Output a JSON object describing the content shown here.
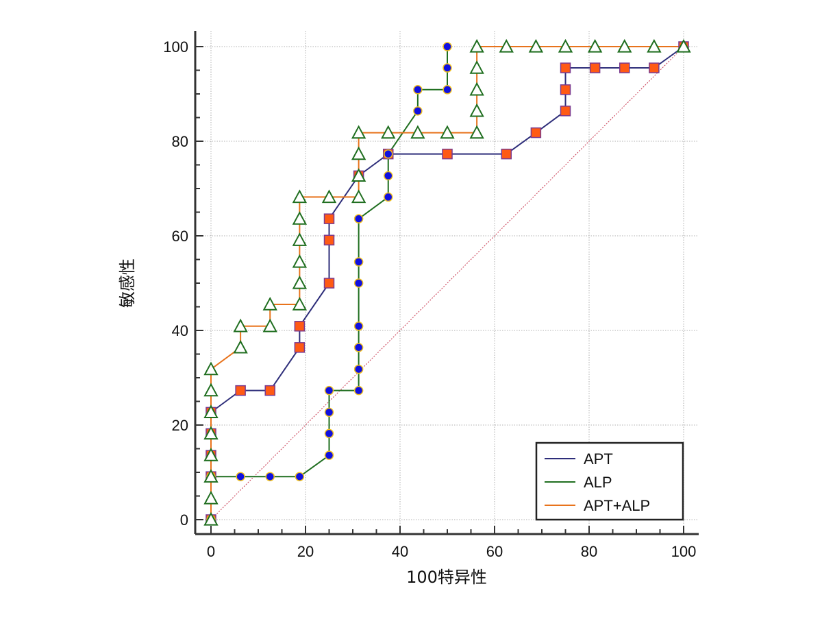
{
  "chart_data": {
    "type": "line",
    "title": "",
    "xlabel": "100特异性",
    "ylabel": "敏感性",
    "xlim": [
      0,
      100
    ],
    "ylim": [
      0,
      100
    ],
    "xticks": [
      0,
      20,
      40,
      60,
      80,
      100
    ],
    "yticks": [
      0,
      20,
      40,
      60,
      80,
      100
    ],
    "grid": true,
    "legend_position": "bottom-right",
    "reference_line": {
      "from": [
        0,
        0
      ],
      "to": [
        100,
        100
      ],
      "color": "#c8374f"
    },
    "series": [
      {
        "name": "APT",
        "color": "#2e2e7a",
        "marker": "square",
        "marker_fill": "#ff5a14",
        "marker_edge": "#7a3a8f",
        "x": [
          0,
          0,
          0,
          0,
          0,
          6.25,
          12.5,
          18.75,
          18.75,
          25,
          25,
          25,
          31.25,
          37.5,
          50,
          62.5,
          68.75,
          75,
          75,
          75,
          81.25,
          87.5,
          93.75,
          100
        ],
        "y": [
          0,
          9.1,
          13.6,
          18.2,
          22.7,
          27.3,
          27.3,
          36.4,
          40.9,
          50,
          59.1,
          63.6,
          72.7,
          77.3,
          77.3,
          77.3,
          81.8,
          86.4,
          90.9,
          95.5,
          95.5,
          95.5,
          95.5,
          100
        ]
      },
      {
        "name": "ALP",
        "color": "#1f6e1f",
        "marker": "circle",
        "marker_fill": "#1010e0",
        "marker_edge": "#f0c020",
        "x": [
          0,
          0,
          6.25,
          12.5,
          18.75,
          25,
          25,
          25,
          25,
          31.25,
          31.25,
          31.25,
          31.25,
          31.25,
          31.25,
          31.25,
          37.5,
          37.5,
          37.5,
          43.75,
          43.75,
          50,
          50,
          50
        ],
        "y": [
          0,
          9.1,
          9.1,
          9.1,
          9.1,
          13.6,
          18.2,
          22.7,
          27.3,
          27.3,
          31.8,
          36.4,
          40.9,
          50,
          54.5,
          63.6,
          68.2,
          72.7,
          77.3,
          86.4,
          90.9,
          90.9,
          95.5,
          100
        ]
      },
      {
        "name": "APT+ALP",
        "color": "#e8731c",
        "marker": "triangle",
        "marker_fill": "#ffffff",
        "marker_edge": "#1f6e1f",
        "x": [
          0,
          0,
          0,
          0,
          0,
          0,
          0,
          0,
          6.25,
          6.25,
          12.5,
          12.5,
          18.75,
          18.75,
          18.75,
          18.75,
          18.75,
          18.75,
          25,
          31.25,
          31.25,
          31.25,
          31.25,
          37.5,
          43.75,
          50,
          56.25,
          56.25,
          56.25,
          56.25,
          56.25,
          62.5,
          68.75,
          75,
          81.25,
          87.5,
          93.75,
          100
        ],
        "y": [
          0,
          4.5,
          9.1,
          13.6,
          18.2,
          22.7,
          27.3,
          31.8,
          36.4,
          40.9,
          40.9,
          45.5,
          45.5,
          50,
          54.5,
          59.1,
          63.6,
          68.2,
          68.2,
          68.2,
          72.7,
          77.3,
          81.8,
          81.8,
          81.8,
          81.8,
          81.8,
          86.4,
          90.9,
          95.5,
          100,
          100,
          100,
          100,
          100,
          100,
          100,
          100
        ]
      }
    ],
    "legend": [
      "APT",
      "ALP",
      "APT+ALP"
    ]
  }
}
